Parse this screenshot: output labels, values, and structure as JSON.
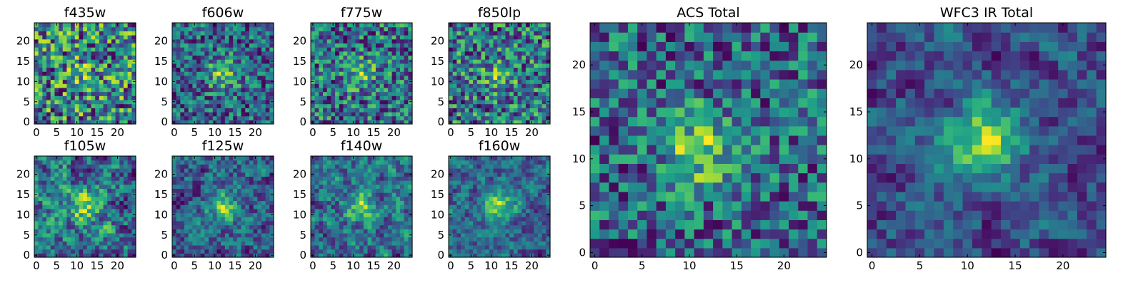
{
  "chart_data": [
    {
      "type": "heatmap",
      "title": "f435w",
      "grid_size": 25,
      "xticks": [
        "0",
        "5",
        "10",
        "15",
        "20"
      ],
      "yticks": [
        "0",
        "5",
        "10",
        "15",
        "20"
      ],
      "colormap": "viridis",
      "seed": 11,
      "blob": [
        12,
        12,
        0.15
      ],
      "smooth": 0
    },
    {
      "type": "heatmap",
      "title": "f606w",
      "grid_size": 25,
      "xticks": [
        "0",
        "5",
        "10",
        "15",
        "20"
      ],
      "yticks": [
        "0",
        "5",
        "10",
        "15",
        "20"
      ],
      "colormap": "viridis",
      "seed": 23,
      "blob": [
        12,
        12,
        0.55
      ],
      "smooth": 0
    },
    {
      "type": "heatmap",
      "title": "f775w",
      "grid_size": 25,
      "xticks": [
        "0",
        "5",
        "10",
        "15",
        "20"
      ],
      "yticks": [
        "0",
        "5",
        "10",
        "15",
        "20"
      ],
      "colormap": "viridis",
      "seed": 37,
      "blob": [
        12,
        12,
        0.35
      ],
      "smooth": 0
    },
    {
      "type": "heatmap",
      "title": "f850lp",
      "grid_size": 25,
      "xticks": [
        "0",
        "5",
        "10",
        "15",
        "20"
      ],
      "yticks": [
        "0",
        "5",
        "10",
        "15",
        "20"
      ],
      "colormap": "viridis",
      "seed": 41,
      "blob": [
        12,
        12,
        0.3
      ],
      "smooth": 0
    },
    {
      "type": "heatmap",
      "title": "f105w",
      "grid_size": 25,
      "xticks": [
        "0",
        "5",
        "10",
        "15",
        "20"
      ],
      "yticks": [
        "0",
        "5",
        "10",
        "15",
        "20"
      ],
      "colormap": "viridis",
      "seed": 53,
      "blob": [
        12,
        12,
        0.35
      ],
      "smooth": 1
    },
    {
      "type": "heatmap",
      "title": "f125w",
      "grid_size": 25,
      "xticks": [
        "0",
        "5",
        "10",
        "15",
        "20"
      ],
      "yticks": [
        "0",
        "5",
        "10",
        "15",
        "20"
      ],
      "colormap": "viridis",
      "seed": 67,
      "blob": [
        12,
        12,
        0.45
      ],
      "smooth": 1
    },
    {
      "type": "heatmap",
      "title": "f140w",
      "grid_size": 25,
      "xticks": [
        "0",
        "5",
        "10",
        "15",
        "20"
      ],
      "yticks": [
        "0",
        "5",
        "10",
        "15",
        "20"
      ],
      "colormap": "viridis",
      "seed": 79,
      "blob": [
        12,
        12,
        0.4
      ],
      "smooth": 1
    },
    {
      "type": "heatmap",
      "title": "f160w",
      "grid_size": 25,
      "xticks": [
        "0",
        "5",
        "10",
        "15",
        "20"
      ],
      "yticks": [
        "0",
        "5",
        "10",
        "15",
        "20"
      ],
      "colormap": "viridis",
      "seed": 83,
      "blob": [
        12,
        12,
        0.7
      ],
      "smooth": 1
    },
    {
      "type": "heatmap",
      "title": "ACS Total",
      "grid_size": 25,
      "xticks": [
        "0",
        "5",
        "10",
        "15",
        "20"
      ],
      "yticks": [
        "0",
        "5",
        "10",
        "15",
        "20"
      ],
      "colormap": "viridis",
      "seed": 97,
      "blob": [
        11,
        11,
        0.6
      ],
      "smooth": 0
    },
    {
      "type": "heatmap",
      "title": "WFC3 IR Total",
      "grid_size": 25,
      "xticks": [
        "0",
        "5",
        "10",
        "15",
        "20"
      ],
      "yticks": [
        "0",
        "5",
        "10",
        "15",
        "20"
      ],
      "colormap": "viridis",
      "seed": 101,
      "blob": [
        12,
        12,
        0.9
      ],
      "smooth": 1
    }
  ]
}
